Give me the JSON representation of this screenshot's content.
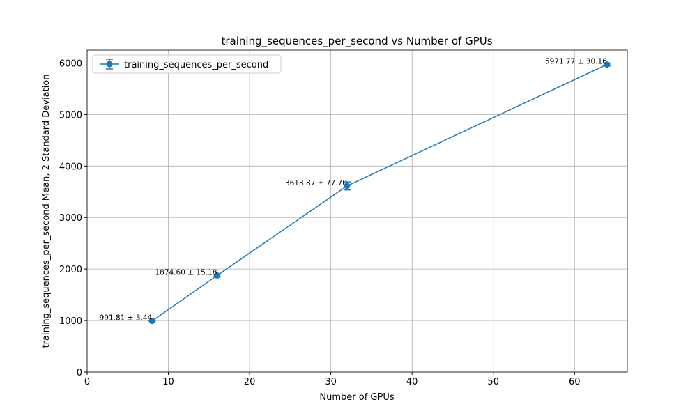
{
  "chart_data": {
    "type": "errorbar-line",
    "title": "training_sequences_per_second vs Number of GPUs",
    "x_label": "Number of GPUs",
    "y_label": "training_sequences_per_second Mean, 2 Standard Deviation",
    "x": [
      8,
      16,
      32,
      64
    ],
    "series": [
      {
        "name": "training_sequences_per_second",
        "color": "#1f77b4",
        "values": [
          991.81,
          1874.6,
          3613.87,
          5971.77
        ],
        "errors": [
          3.44,
          15.18,
          77.7,
          30.16
        ],
        "value_labels": [
          "991.81 ± 3.44",
          "1874.60 ± 15.18",
          "3613.87 ± 77.70",
          "5971.77 ± 30.16"
        ]
      }
    ],
    "xlim": [
      0,
      66.5
    ],
    "ylim": [
      0,
      6250
    ],
    "xticks": [
      0,
      10,
      20,
      30,
      40,
      50,
      60
    ],
    "yticks": [
      0,
      1000,
      2000,
      3000,
      4000,
      5000,
      6000
    ],
    "grid": true,
    "legend": "upper-left"
  }
}
